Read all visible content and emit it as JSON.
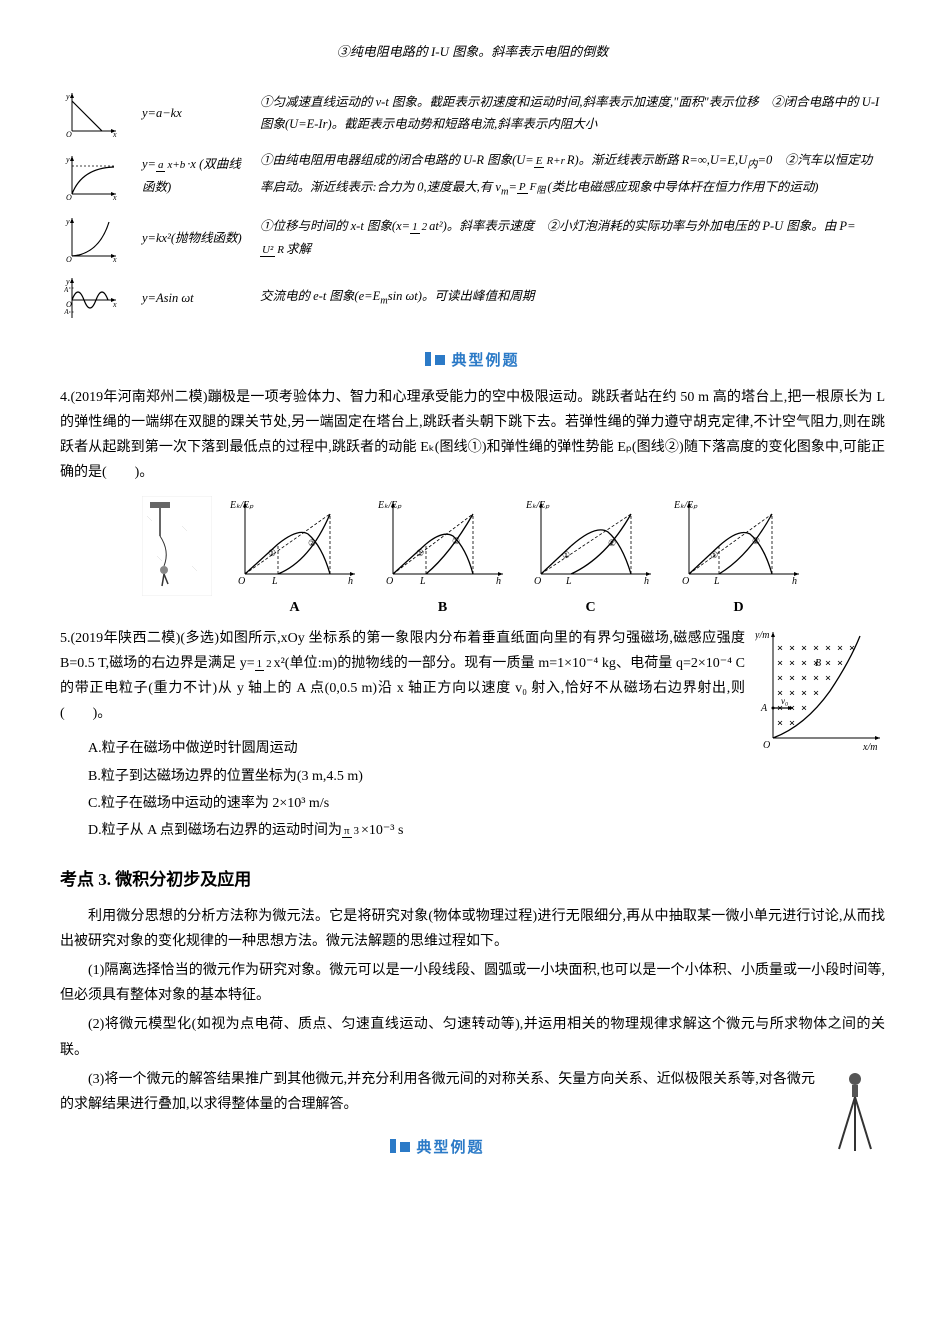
{
  "top_note": "③纯电阻电路的 I-U 图象。斜率表示电阻的倒数",
  "fn_rows": [
    {
      "eq": "y=a−kx",
      "desc": "①匀减速直线运动的 v-t 图象。截距表示初速度和运动时间,斜率表示加速度,\"面积\"表示位移　②闭合电路中的 U-I 图象(U=E-Ir)。截距表示电动势和短路电流,斜率表示内阻大小",
      "graph": "linear_down"
    },
    {
      "eq_html": "y=<span class='frac'><span class='n'>a</span><span class='d'>x+b</span></span>·x (双曲线函数)",
      "desc_html": "①由纯电阻用电器组成的闭合电路的 U-R 图象(U=<span class='frac'><span class='n'>E</span><span class='d'>R+r</span></span>R)。渐近线表示断路 R=∞,U=E,U<sub>内</sub>=0　②汽车以恒定功率启动。渐近线表示:合力为 0,速度最大,有 v<sub>m</sub>=<span class='frac'><span class='n'>P</span><span class='d'>F<sub>阻</sub></span></span>(类比电磁感应现象中导体杆在恒力作用下的运动)",
      "graph": "sat_curve"
    },
    {
      "eq_html": "y=kx²(抛物线函数)",
      "desc_html": "①位移与时间的 x-t 图象(x=<span class='frac'><span class='n'>1</span><span class='d'>2</span></span>at²)。斜率表示速度　②小灯泡消耗的实际功率与外加电压的 P-U 图象。由 P=<span class='frac'><span class='n'>U²</span><span class='d'>R</span></span>求解",
      "graph": "parabola"
    },
    {
      "eq": "y=Asin ωt",
      "desc_html": "交流电的 e-t 图象(e=E<sub>m</sub>sin ωt)。可读出峰值和周期",
      "graph": "sine"
    }
  ],
  "section_label1": "典型例题",
  "section_label2": "典型例题",
  "prob4": {
    "text": "4.(2019年河南郑州二模)蹦极是一项考验体力、智力和心理承受能力的空中极限运动。跳跃者站在约 50 m 高的塔台上,把一根原长为 L 的弹性绳的一端绑在双腿的踝关节处,另一端固定在塔台上,跳跃者头朝下跳下去。若弹性绳的弹力遵守胡克定律,不计空气阻力,则在跳跃者从起跳到第一次下落到最低点的过程中,跳跃者的动能 Eₖ(图线①)和弹性绳的弹性势能 Eₚ(图线②)随下落高度的变化图象中,可能正确的是(　　)。",
    "choices": [
      "A",
      "B",
      "C",
      "D"
    ],
    "axis_y": "Eₖ/Eₚ",
    "axis_x": "h",
    "mark_L": "L"
  },
  "prob5": {
    "intro_html": "5.(2019年陕西二模)(多选)如图所示,xOy 坐标系的第一象限内分布着垂直纸面向里的有界匀强磁场,磁感应强度 B=0.5 T,磁场的右边界是满足 y=<span class='frac'><span class='n'>1</span><span class='d'>2</span></span>x²(单位:m)的抛物线的一部分。现有一质量 m=1×10⁻⁴ kg、电荷量 q=2×10⁻⁴ C 的带正电粒子(重力不计)从 y 轴上的 A 点(0,0.5 m)沿 x 轴正方向以速度 v₀ 射入,恰好不从磁场右边界射出,则(　　)。",
    "opt_a": "A.粒子在磁场中做逆时针圆周运动",
    "opt_b": "B.粒子到达磁场边界的位置坐标为(3 m,4.5 m)",
    "opt_c": "C.粒子在磁场中运动的速率为 2×10³ m/s",
    "opt_d_html": "D.粒子从 A 点到磁场右边界的运动时间为<span class='frac'><span class='n'>π</span><span class='d'>3</span></span>×10⁻³ s",
    "fig_labels": {
      "y": "y/m",
      "x": "x/m",
      "A": "A",
      "B": "B",
      "O": "O"
    }
  },
  "kd3": {
    "title": "考点 3. 微积分初步及应用",
    "p1": "利用微分思想的分析方法称为微元法。它是将研究对象(物体或物理过程)进行无限细分,再从中抽取某一微小单元进行讨论,从而找出被研究对象的变化规律的一种思想方法。微元法解题的思维过程如下。",
    "p2": "(1)隔离选择恰当的微元作为研究对象。微元可以是一小段线段、圆弧或一小块面积,也可以是一个小体积、小质量或一小段时间等,但必须具有整体对象的基本特征。",
    "p3": "(2)将微元模型化(如视为点电荷、质点、匀速直线运动、匀速转动等),并运用相关的物理规律求解这个微元与所求物体之间的关联。",
    "p4": "(3)将一个微元的解答结果推广到其他微元,并充分利用各微元间的对称关系、矢量方向关系、近似极限关系等,对各微元的求解结果进行叠加,以求得整体量的合理解答。"
  },
  "colors": {
    "text": "#000000",
    "accent": "#2b7ac7",
    "bg": "#ffffff"
  }
}
